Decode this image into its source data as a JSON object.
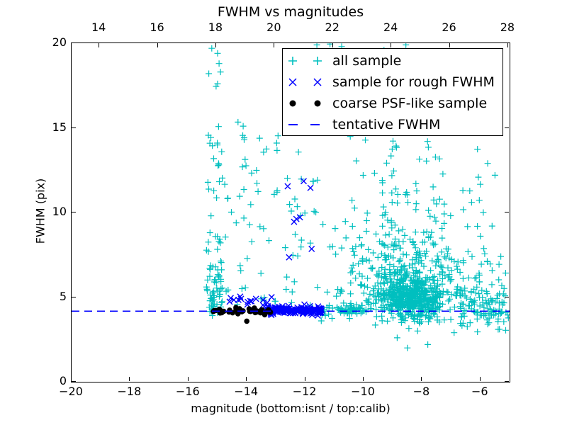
{
  "seed": 7,
  "legend": {
    "items": [
      {
        "label": "all sample",
        "marker": "plus",
        "icon": "plus-marker-icon",
        "color": "#00BFBF"
      },
      {
        "label": "sample for rough FWHM",
        "marker": "x",
        "icon": "x-marker-icon",
        "color": "#0000FF"
      },
      {
        "label": "coarse PSF-like sample",
        "marker": "dot",
        "icon": "dot-marker-icon",
        "color": "#000000"
      },
      {
        "label": "tentative FWHM",
        "marker": "dash",
        "icon": "dashed-line-icon",
        "color": "#0000FF"
      }
    ]
  },
  "chart_data": {
    "type": "scatter",
    "title": "FWHM vs magnitudes",
    "xlabel": "magnitude (bottom:isnt / top:calib)",
    "ylabel": "FWHM (pix)",
    "tentative_fwhm": 4.17,
    "axes": {
      "bottom": {
        "range": [
          -20,
          -5
        ],
        "ticks": [
          -20,
          -18,
          -16,
          -14,
          -12,
          -10,
          -8,
          -6
        ]
      },
      "top": {
        "range": [
          13.05,
          28.05
        ],
        "ticks": [
          14,
          16,
          18,
          20,
          22,
          24,
          26,
          28
        ]
      },
      "left": {
        "range": [
          0,
          20
        ],
        "ticks": [
          0,
          5,
          10,
          15,
          20
        ]
      },
      "grid": false
    },
    "series": [
      {
        "name": "all sample",
        "marker": "plus",
        "color": "#00BFBF",
        "points": [
          [
            -15.2,
            19.7
          ],
          [
            -15.0,
            19.4
          ],
          [
            -14.95,
            18.8
          ],
          [
            -14.9,
            18.3
          ],
          [
            -15.3,
            18.2
          ],
          [
            -15.0,
            17.6
          ],
          [
            -15.05,
            17.45
          ],
          [
            -11.6,
            19.9
          ],
          [
            -11.15,
            19.95
          ],
          [
            -10.75,
            19.8
          ],
          [
            -10.3,
            19.5
          ],
          [
            -10.15,
            18.85
          ],
          [
            -9.3,
            19.6
          ],
          [
            -8.55,
            19.9
          ],
          [
            -8.45,
            3.15
          ],
          [
            -8.15,
            3.0
          ],
          [
            -7.8,
            2.2
          ],
          [
            -6.45,
            3.25
          ],
          [
            -5.2,
            3.55
          ],
          [
            -8.85,
            2.6
          ],
          [
            -9.6,
            3.35
          ],
          [
            -6.1,
            2.95
          ],
          [
            -8.5,
            2.0
          ],
          [
            -6.9,
            2.9
          ],
          [
            -11.45,
            3.6
          ],
          [
            -6.3,
            10.6
          ],
          [
            -5.9,
            10.0
          ],
          [
            -5.6,
            9.2
          ],
          [
            -6.0,
            8.6
          ],
          [
            -5.3,
            7.4
          ],
          [
            -6.6,
            11.3
          ],
          [
            -5.75,
            12.9
          ],
          [
            -5.5,
            12.2
          ]
        ],
        "clusters": [
          {
            "kind": "gauss",
            "n": 430,
            "cx": -8.35,
            "cy": 4.9,
            "sx": 0.52,
            "sy": 0.6,
            "ymin": 3.45,
            "ymax": 7.5
          },
          {
            "kind": "gauss",
            "n": 260,
            "cx": -8.3,
            "cy": 5.8,
            "sx": 1.0,
            "sy": 1.6,
            "ymin": 3.5,
            "ymax": 11.5
          },
          {
            "kind": "expup",
            "n": 170,
            "cx": -8.55,
            "sx": 1.2,
            "y0": 4.3,
            "mean": 2.3,
            "ymax": 14.7
          },
          {
            "kind": "uniform",
            "n": 42,
            "x0": -10.7,
            "x1": -5.8,
            "y0": 9.5,
            "y1": 14.6
          },
          {
            "kind": "uniform",
            "n": 24,
            "x0": -11.2,
            "x1": -9.3,
            "y0": 5.2,
            "y1": 9.5
          },
          {
            "kind": "band",
            "n": 70,
            "x0": -11.5,
            "x1": -9.9,
            "cy": 4.25,
            "sy": 0.13
          },
          {
            "kind": "band",
            "n": 95,
            "x0": -6.7,
            "x1": -5.02,
            "cy": 4.35,
            "sy": 0.6
          },
          {
            "kind": "uniform",
            "n": 16,
            "x0": -6.7,
            "x1": -5.1,
            "y0": 5.6,
            "y1": 7.8
          },
          {
            "kind": "band",
            "n": 60,
            "x0": -15.38,
            "x1": -14.82,
            "cy": 5.3,
            "sy": 1.1,
            "ymin": 3.9
          },
          {
            "kind": "uniform",
            "n": 28,
            "x0": -15.38,
            "x1": -14.75,
            "y0": 7.5,
            "y1": 15.6
          },
          {
            "kind": "uniform",
            "n": 62,
            "x0": -14.75,
            "x1": -11.55,
            "y0": 4.5,
            "y1": 12.8
          },
          {
            "kind": "uniform",
            "n": 14,
            "x0": -14.4,
            "x1": -11.7,
            "y0": 12.8,
            "y1": 15.4
          }
        ]
      },
      {
        "name": "sample for rough FWHM",
        "marker": "x",
        "color": "#0000FF",
        "points": [
          [
            -12.6,
            11.55
          ],
          [
            -12.05,
            11.85
          ],
          [
            -11.82,
            11.45
          ],
          [
            -12.3,
            9.62
          ],
          [
            -12.18,
            9.72
          ],
          [
            -12.38,
            9.45
          ],
          [
            -11.78,
            7.85
          ],
          [
            -12.55,
            7.35
          ],
          [
            -14.55,
            4.95
          ],
          [
            -14.2,
            4.9
          ],
          [
            -13.15,
            5.0
          ]
        ],
        "clusters": [
          {
            "kind": "band",
            "n": 165,
            "x0": -13.3,
            "x1": -11.42,
            "cy": 4.2,
            "sy": 0.1
          },
          {
            "kind": "band",
            "n": 14,
            "x0": -14.6,
            "x1": -13.2,
            "cy": 4.75,
            "sy": 0.18
          }
        ]
      },
      {
        "name": "coarse PSF-like sample",
        "marker": "dot",
        "color": "#000000",
        "points": [
          [
            -14.0,
            3.58
          ]
        ],
        "clusters": [
          {
            "kind": "band",
            "n": 46,
            "x0": -15.15,
            "x1": -13.18,
            "cy": 4.2,
            "sy": 0.09
          }
        ]
      },
      {
        "name": "tentative FWHM",
        "type": "hline",
        "y": 4.17,
        "style": "dashed",
        "color": "#0000FF"
      }
    ]
  }
}
